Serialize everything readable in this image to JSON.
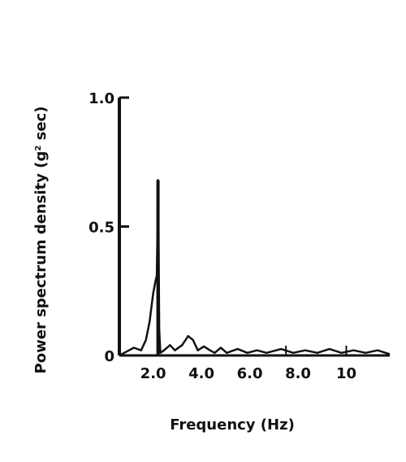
{
  "chart_data": {
    "type": "line",
    "title": "",
    "xlabel": "Frequency (Hz)",
    "ylabel": {
      "prefix": "Power spectrum density (g",
      "superscript": "2",
      "suffix": " sec)"
    },
    "xlim": [
      0.6,
      11.8
    ],
    "ylim": [
      0,
      1.0
    ],
    "y_ticks": [
      {
        "value": 0,
        "label": "0"
      },
      {
        "value": 0.5,
        "label": "0.5"
      },
      {
        "value": 1.0,
        "label": "1.0"
      }
    ],
    "x_ticks": [
      {
        "value": 2.0,
        "label": "2.0"
      },
      {
        "value": 4.0,
        "label": "4.0"
      },
      {
        "value": 6.0,
        "label": "6.0"
      },
      {
        "value": 8.0,
        "label": "8.0"
      },
      {
        "value": 10.0,
        "label": "10"
      }
    ],
    "grid": false,
    "series": [
      {
        "color": "#111111",
        "points": [
          [
            0.6,
            0.0
          ],
          [
            1.0,
            0.02
          ],
          [
            1.2,
            0.03
          ],
          [
            1.5,
            0.02
          ],
          [
            1.7,
            0.06
          ],
          [
            1.85,
            0.13
          ],
          [
            2.0,
            0.24
          ],
          [
            2.1,
            0.29
          ],
          [
            2.15,
            0.31
          ],
          [
            2.18,
            0.5
          ],
          [
            2.2,
            0.68
          ],
          [
            2.22,
            0.5
          ],
          [
            2.25,
            0.1
          ],
          [
            2.3,
            0.01
          ],
          [
            2.45,
            0.02
          ],
          [
            2.7,
            0.04
          ],
          [
            2.9,
            0.02
          ],
          [
            3.2,
            0.04
          ],
          [
            3.45,
            0.075
          ],
          [
            3.65,
            0.06
          ],
          [
            3.85,
            0.02
          ],
          [
            4.1,
            0.035
          ],
          [
            4.35,
            0.02
          ],
          [
            4.55,
            0.01
          ],
          [
            4.8,
            0.03
          ],
          [
            5.05,
            0.01
          ],
          [
            5.5,
            0.025
          ],
          [
            5.9,
            0.01
          ],
          [
            6.3,
            0.02
          ],
          [
            6.7,
            0.01
          ],
          [
            7.3,
            0.025
          ],
          [
            7.8,
            0.01
          ],
          [
            8.3,
            0.02
          ],
          [
            8.8,
            0.01
          ],
          [
            9.3,
            0.025
          ],
          [
            9.8,
            0.01
          ],
          [
            10.3,
            0.02
          ],
          [
            10.8,
            0.01
          ],
          [
            11.3,
            0.02
          ],
          [
            11.8,
            0.005
          ]
        ]
      }
    ],
    "minor_x_marks": [
      7.5,
      10.0
    ]
  }
}
